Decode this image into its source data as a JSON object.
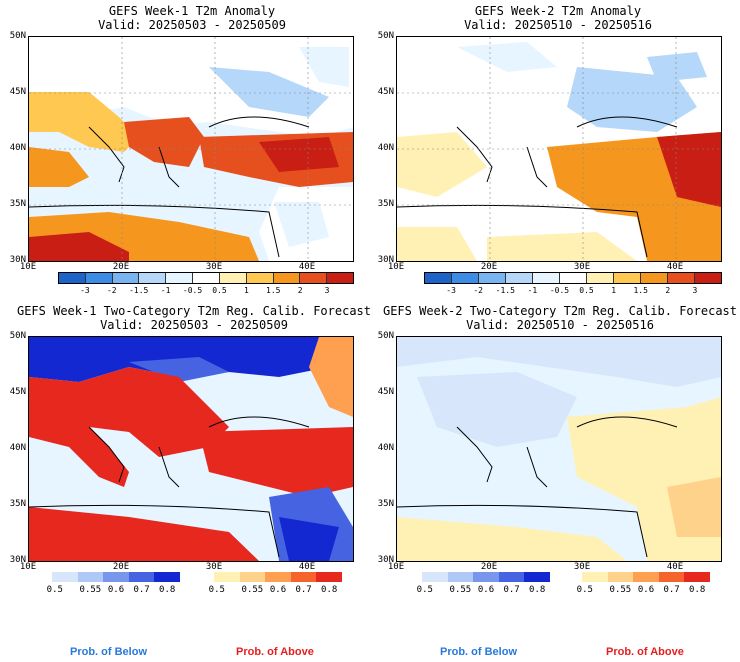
{
  "panels": [
    {
      "title": "GEFS Week-1 T2m Anomaly",
      "valid": "Valid: 20250503 - 20250509",
      "type": "anomaly",
      "week": 1
    },
    {
      "title": "GEFS Week-2 T2m Anomaly",
      "valid": "Valid: 20250510 - 20250516",
      "type": "anomaly",
      "week": 2
    },
    {
      "title": "GEFS Week-1 Two-Category T2m Reg. Calib. Forecast",
      "valid": "Valid: 20250503 - 20250509",
      "type": "prob",
      "week": 1
    },
    {
      "title": "GEFS Week-2 Two-Category T2m Reg. Calib. Forecast",
      "valid": "Valid: 20250510 - 20250516",
      "type": "prob",
      "week": 2
    }
  ],
  "lat_labels": [
    "50N",
    "45N",
    "40N",
    "35N",
    "30N"
  ],
  "lon_labels": [
    "10E",
    "20E",
    "30E",
    "40E"
  ],
  "anomaly_colorbar": {
    "labels": [
      "-3",
      "-2",
      "-1.5",
      "-1",
      "-0.5",
      "0.5",
      "1",
      "1.5",
      "2",
      "3"
    ],
    "colors": [
      "#1e64c8",
      "#3c8ce6",
      "#78b4f0",
      "#b4d7fa",
      "#e6f5ff",
      "#ffffff",
      "#fff0b4",
      "#ffc850",
      "#f5961e",
      "#e6501e",
      "#c81e14"
    ]
  },
  "prob_colorbars": {
    "labels": [
      "0.5",
      "0.55",
      "0.6",
      "0.7",
      "0.8"
    ],
    "below_colors": [
      "#d7e6fa",
      "#afc8f5",
      "#7896eb",
      "#4664e1",
      "#1428d2"
    ],
    "above_colors": [
      "#fff0b4",
      "#ffd28c",
      "#ffa050",
      "#f5642d",
      "#e6281e"
    ],
    "below_label": "Prob. of Below",
    "above_label": "Prob. of Above",
    "below_label_color": "#2878dc",
    "above_label_color": "#e61e1e"
  },
  "colors": {
    "sea": "#e6f5ff",
    "land_border": "#000000",
    "grid": "#888888"
  }
}
